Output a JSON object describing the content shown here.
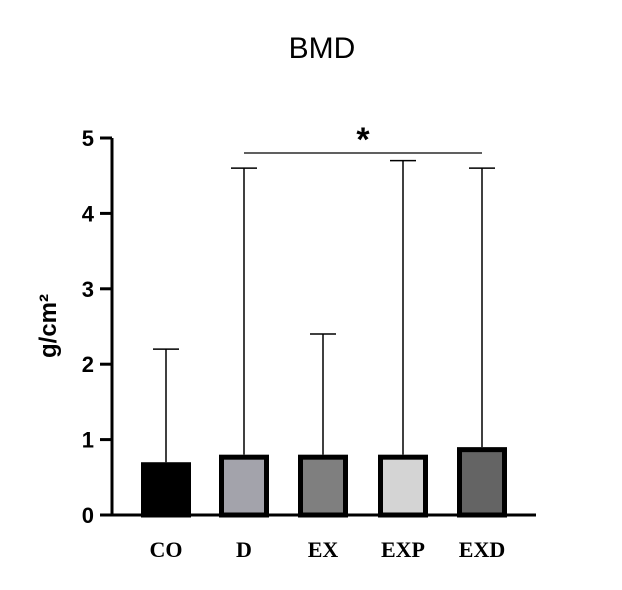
{
  "chart_data": {
    "type": "bar",
    "title": "BMD",
    "ylabel": "g/cm²",
    "xlabel": "",
    "ylim": [
      0,
      5
    ],
    "yticks": [
      0,
      1,
      2,
      3,
      4,
      5
    ],
    "categories": [
      "CO",
      "D",
      "EX",
      "EXP",
      "EXD"
    ],
    "values": [
      0.7,
      0.8,
      0.8,
      0.8,
      0.9
    ],
    "error_upper": [
      2.2,
      4.6,
      2.4,
      4.7,
      4.6
    ],
    "colors": [
      "#000000",
      "#a3a3ab",
      "#7f7f7f",
      "#d4d4d4",
      "#646464"
    ],
    "significance": {
      "label": "*",
      "from": "D",
      "to": "EXD"
    },
    "grid": false,
    "legend": "none"
  }
}
